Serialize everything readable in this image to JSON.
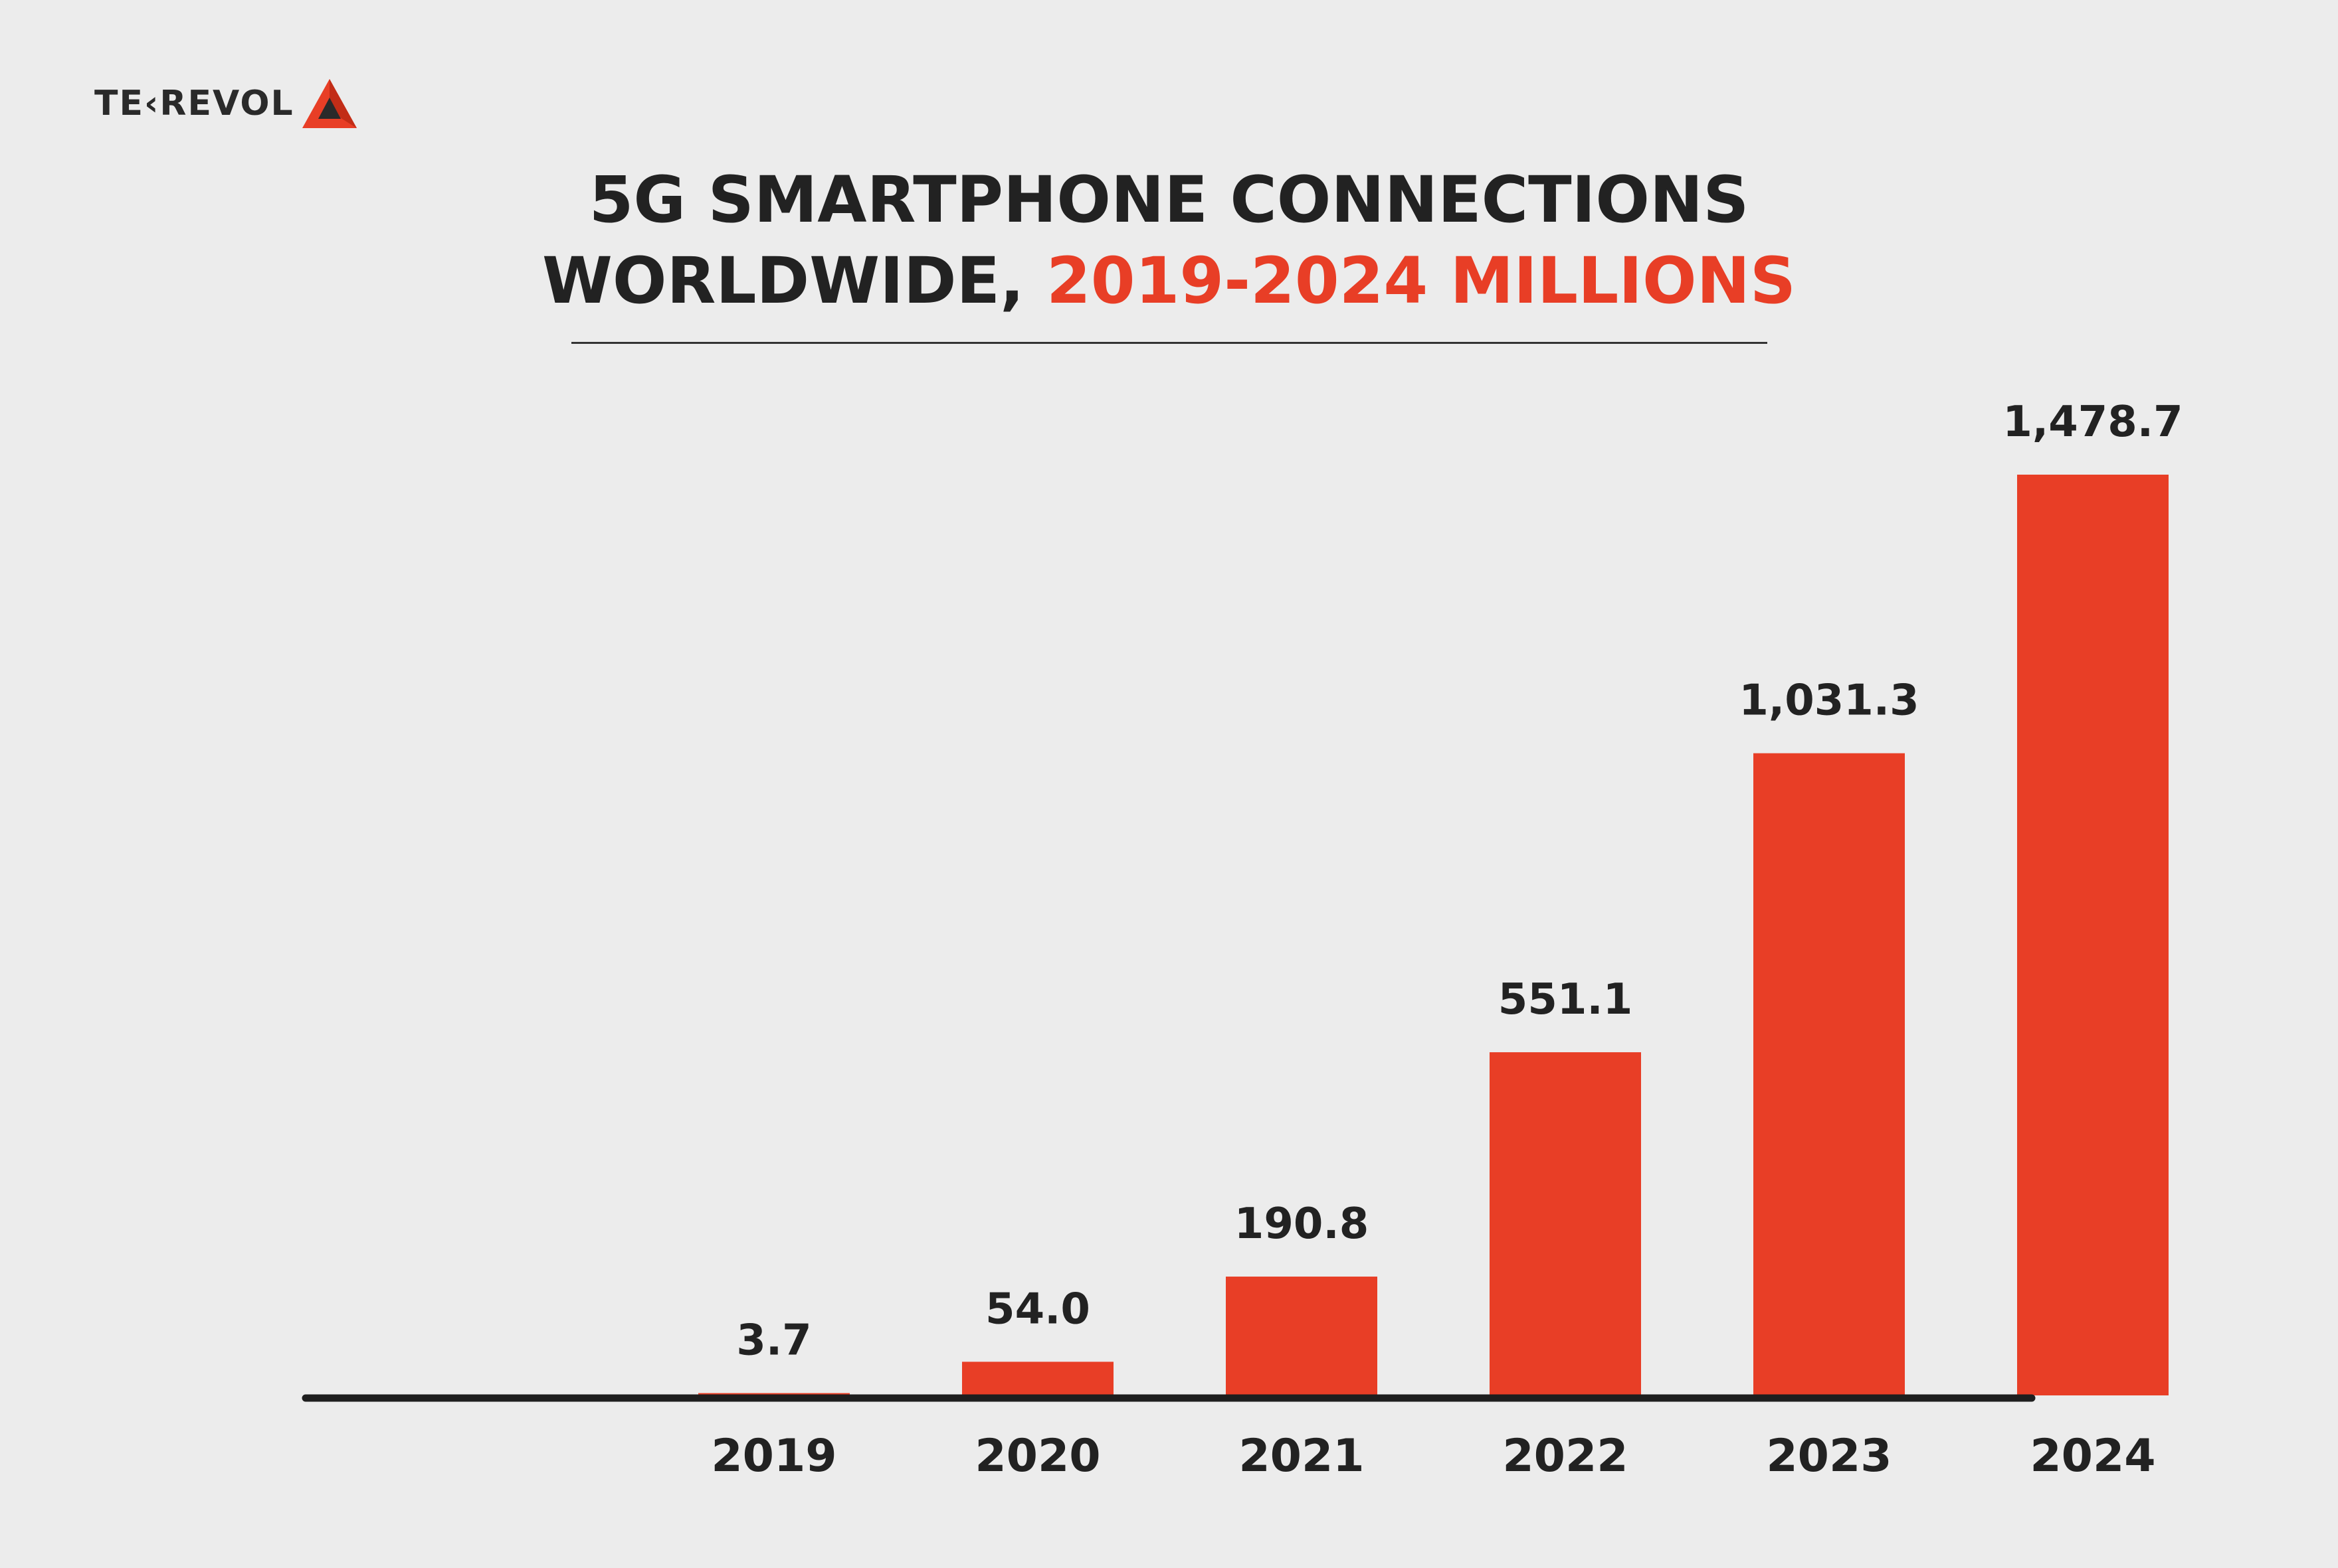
{
  "brand": {
    "logo_text": "TE‹REVOL",
    "logo_icon": "tekrevol-triangle-icon",
    "accent_color": "#e83e26",
    "accent_dark": "#c22d17"
  },
  "title": {
    "line1": "5G SMARTPHONE CONNECTIONS",
    "line2_plain": "WORLDWIDE, ",
    "line2_accent": "2019-2024 MILLIONS"
  },
  "chart_data": {
    "type": "bar",
    "title": "5G SMARTPHONE CONNECTIONS WORLDWIDE, 2019-2024 MILLIONS",
    "categories": [
      "2019",
      "2020",
      "2021",
      "2022",
      "2023",
      "2024"
    ],
    "values": [
      3.7,
      54.0,
      190.8,
      551.1,
      1031.3,
      1478.7
    ],
    "value_labels": [
      "3.7",
      "54.0",
      "190.8",
      "551.1",
      "1,031.3",
      "1,478.7"
    ],
    "xlabel": "",
    "ylabel": "",
    "ylim": [
      0,
      1478.7
    ],
    "bar_color": "#e83e26",
    "grid": false,
    "legend": "none"
  }
}
